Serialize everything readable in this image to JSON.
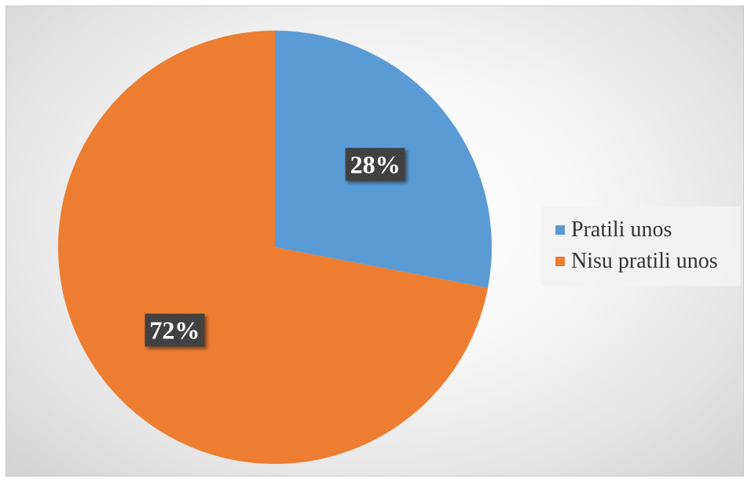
{
  "chart_data": {
    "type": "pie",
    "title": "",
    "start_angle_deg": 0,
    "direction": "clockwise",
    "slices": [
      {
        "label": "Pratili unos",
        "value": 28,
        "display": "28%",
        "color": "#5b9bd5"
      },
      {
        "label": "Nisu pratili unos",
        "value": 72,
        "display": "72%",
        "color": "#ed7d31"
      }
    ],
    "legend": {
      "position": "right",
      "items": [
        "Pratili unos",
        "Nisu pratili unos"
      ]
    },
    "label_style": {
      "text_color": "#ffffff",
      "box_color": "#3a3a3a"
    }
  }
}
